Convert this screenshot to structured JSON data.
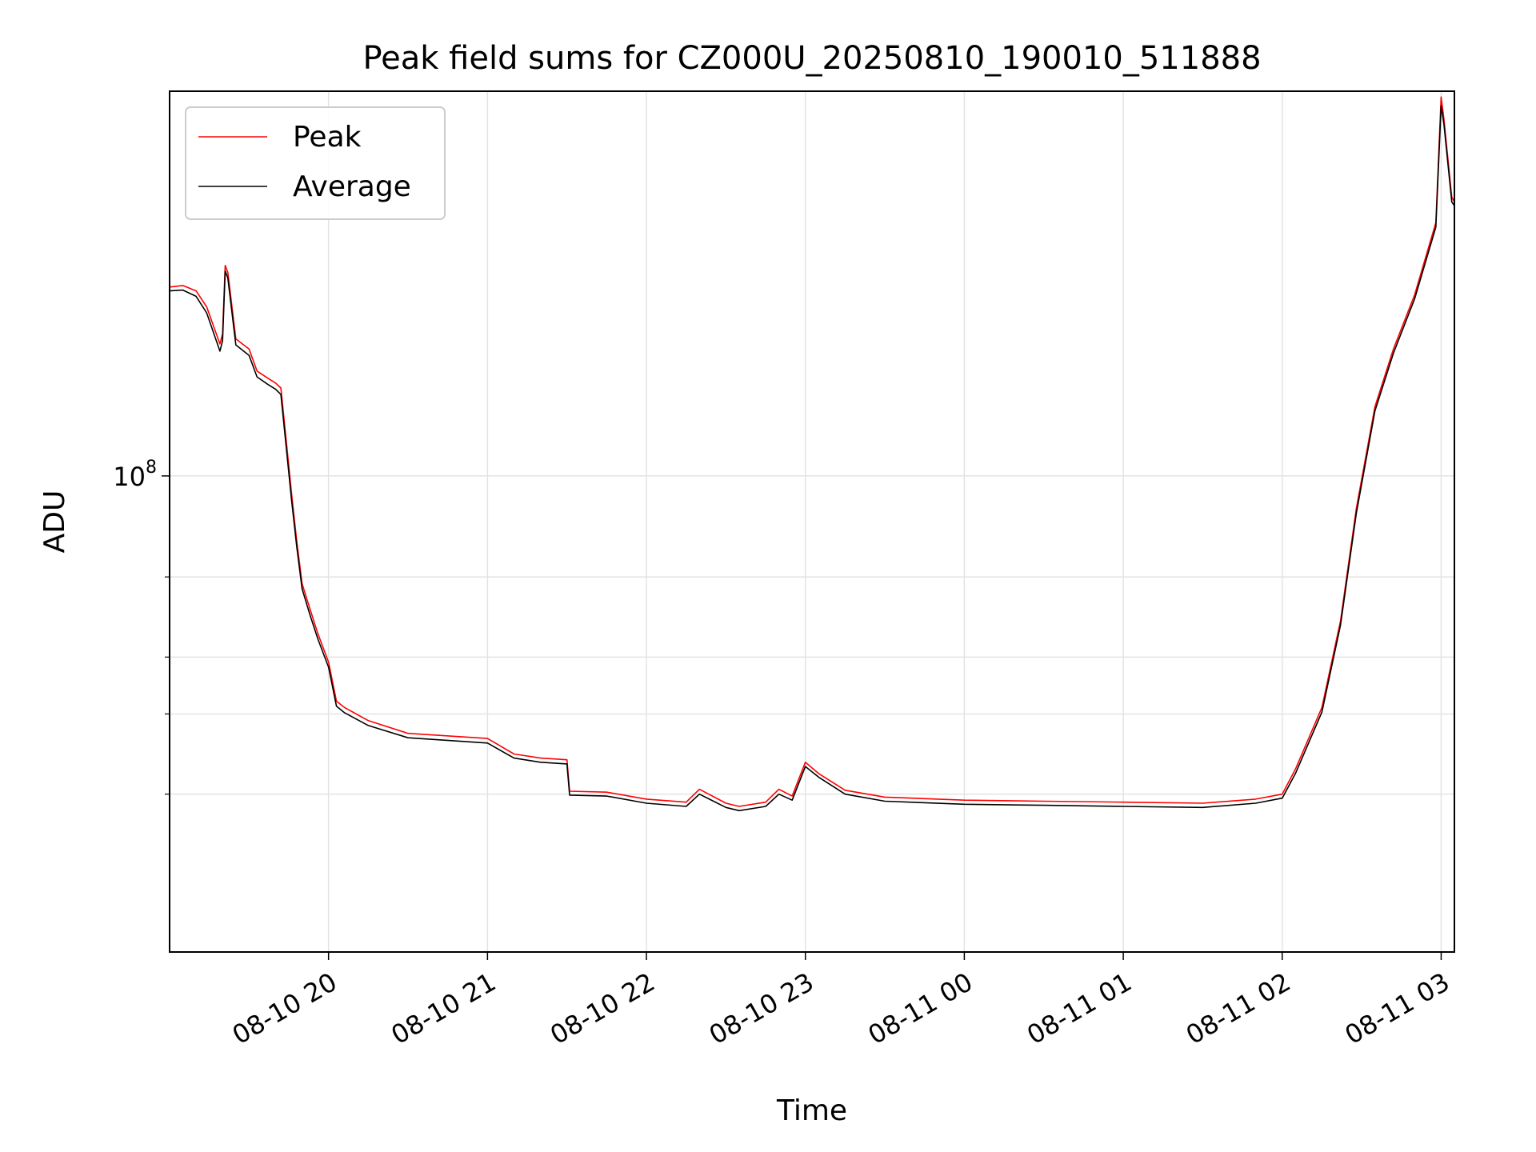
{
  "chart_data": {
    "type": "line",
    "title": "Peak field sums for CZ000U_20250810_190010_511888",
    "xlabel": "Time",
    "ylabel": "ADU",
    "yscale": "log",
    "grid": true,
    "legend_position": "upper-left",
    "xlim": [
      "2025-08-10 19:00",
      "2025-08-11 03:05"
    ],
    "ylim": [
      9000000,
      700000000
    ],
    "x_ticks": [
      {
        "at": "2025-08-10 20:00",
        "label": "08-10 20"
      },
      {
        "at": "2025-08-10 21:00",
        "label": "08-10 21"
      },
      {
        "at": "2025-08-10 22:00",
        "label": "08-10 22"
      },
      {
        "at": "2025-08-10 23:00",
        "label": "08-10 23"
      },
      {
        "at": "2025-08-11 00:00",
        "label": "08-11 00"
      },
      {
        "at": "2025-08-11 01:00",
        "label": "08-11 01"
      },
      {
        "at": "2025-08-11 02:00",
        "label": "08-11 02"
      },
      {
        "at": "2025-08-11 03:00",
        "label": "08-11 03"
      }
    ],
    "y_ticks": [
      {
        "value": 100000000,
        "base": "10",
        "exp": "8"
      }
    ],
    "y_minor_ticks": [
      20000000,
      30000000,
      40000000,
      60000000
    ],
    "series": [
      {
        "name": "Peak",
        "color": "#ff0000",
        "x": [
          "2025-08-10 19:00",
          "2025-08-10 19:05",
          "2025-08-10 19:10",
          "2025-08-10 19:14",
          "2025-08-10 19:17",
          "2025-08-10 19:19",
          "2025-08-10 19:20",
          "2025-08-10 19:21",
          "2025-08-10 19:22",
          "2025-08-10 19:25",
          "2025-08-10 19:30",
          "2025-08-10 19:33",
          "2025-08-10 19:37",
          "2025-08-10 19:40",
          "2025-08-10 19:42",
          "2025-08-10 19:44",
          "2025-08-10 19:46",
          "2025-08-10 19:48",
          "2025-08-10 19:50",
          "2025-08-10 19:53",
          "2025-08-10 19:56",
          "2025-08-10 20:00",
          "2025-08-10 20:03",
          "2025-08-10 20:06",
          "2025-08-10 20:15",
          "2025-08-10 20:30",
          "2025-08-10 21:00",
          "2025-08-10 21:10",
          "2025-08-10 21:20",
          "2025-08-10 21:30",
          "2025-08-10 21:31",
          "2025-08-10 21:45",
          "2025-08-10 22:00",
          "2025-08-10 22:15",
          "2025-08-10 22:20",
          "2025-08-10 22:30",
          "2025-08-10 22:35",
          "2025-08-10 22:45",
          "2025-08-10 22:50",
          "2025-08-10 22:55",
          "2025-08-10 23:00",
          "2025-08-10 23:05",
          "2025-08-10 23:15",
          "2025-08-10 23:30",
          "2025-08-11 00:00",
          "2025-08-11 00:30",
          "2025-08-11 01:00",
          "2025-08-11 01:30",
          "2025-08-11 01:50",
          "2025-08-11 02:00",
          "2025-08-11 02:05",
          "2025-08-11 02:15",
          "2025-08-11 02:22",
          "2025-08-11 02:28",
          "2025-08-11 02:35",
          "2025-08-11 02:42",
          "2025-08-11 02:50",
          "2025-08-11 02:58",
          "2025-08-11 03:00",
          "2025-08-11 03:01",
          "2025-08-11 03:04",
          "2025-08-11 03:05"
        ],
        "y": [
          260000000,
          262000000,
          255000000,
          235000000,
          210000000,
          195000000,
          205000000,
          290000000,
          280000000,
          200000000,
          190000000,
          170000000,
          164000000,
          160000000,
          156000000,
          120000000,
          92000000,
          72000000,
          58000000,
          51000000,
          45000000,
          39000000,
          32000000,
          31000000,
          29000000,
          27200000,
          26500000,
          24500000,
          24000000,
          23800000,
          20300000,
          20200000,
          19500000,
          19200000,
          20500000,
          19100000,
          18800000,
          19200000,
          20500000,
          19800000,
          23500000,
          22200000,
          20400000,
          19700000,
          19400000,
          19300000,
          19200000,
          19100000,
          19500000,
          20000000,
          22700000,
          31000000,
          48000000,
          85000000,
          142000000,
          190000000,
          250000000,
          360000000,
          680000000,
          610000000,
          410000000,
          400000000
        ]
      },
      {
        "name": "Average",
        "color": "#000000",
        "x": [
          "2025-08-10 19:00",
          "2025-08-10 19:05",
          "2025-08-10 19:10",
          "2025-08-10 19:14",
          "2025-08-10 19:17",
          "2025-08-10 19:19",
          "2025-08-10 19:20",
          "2025-08-10 19:21",
          "2025-08-10 19:22",
          "2025-08-10 19:25",
          "2025-08-10 19:30",
          "2025-08-10 19:33",
          "2025-08-10 19:37",
          "2025-08-10 19:40",
          "2025-08-10 19:42",
          "2025-08-10 19:44",
          "2025-08-10 19:46",
          "2025-08-10 19:48",
          "2025-08-10 19:50",
          "2025-08-10 19:53",
          "2025-08-10 19:56",
          "2025-08-10 20:00",
          "2025-08-10 20:03",
          "2025-08-10 20:06",
          "2025-08-10 20:15",
          "2025-08-10 20:30",
          "2025-08-10 21:00",
          "2025-08-10 21:10",
          "2025-08-10 21:20",
          "2025-08-10 21:30",
          "2025-08-10 21:31",
          "2025-08-10 21:45",
          "2025-08-10 22:00",
          "2025-08-10 22:15",
          "2025-08-10 22:20",
          "2025-08-10 22:30",
          "2025-08-10 22:35",
          "2025-08-10 22:45",
          "2025-08-10 22:50",
          "2025-08-10 22:55",
          "2025-08-10 23:00",
          "2025-08-10 23:05",
          "2025-08-10 23:15",
          "2025-08-10 23:30",
          "2025-08-11 00:00",
          "2025-08-11 00:30",
          "2025-08-11 01:00",
          "2025-08-11 01:30",
          "2025-08-11 01:50",
          "2025-08-11 02:00",
          "2025-08-11 02:05",
          "2025-08-11 02:15",
          "2025-08-11 02:22",
          "2025-08-11 02:28",
          "2025-08-11 02:35",
          "2025-08-11 02:42",
          "2025-08-11 02:50",
          "2025-08-11 02:58",
          "2025-08-11 03:00",
          "2025-08-11 03:01",
          "2025-08-11 03:04",
          "2025-08-11 03:05"
        ],
        "y": [
          255000000,
          256000000,
          248000000,
          228000000,
          203000000,
          188000000,
          198000000,
          282000000,
          272000000,
          194000000,
          184000000,
          165000000,
          159000000,
          155000000,
          151000000,
          116000000,
          89000000,
          70000000,
          56500000,
          49500000,
          43800000,
          38000000,
          31200000,
          30200000,
          28300000,
          26600000,
          25900000,
          24000000,
          23500000,
          23300000,
          19900000,
          19800000,
          19100000,
          18800000,
          20000000,
          18700000,
          18400000,
          18800000,
          20000000,
          19400000,
          23000000,
          21800000,
          20000000,
          19300000,
          19000000,
          18900000,
          18800000,
          18700000,
          19100000,
          19600000,
          22200000,
          30300000,
          47000000,
          83000000,
          139000000,
          186000000,
          245000000,
          352000000,
          650000000,
          595000000,
          400000000,
          392000000
        ]
      }
    ]
  }
}
